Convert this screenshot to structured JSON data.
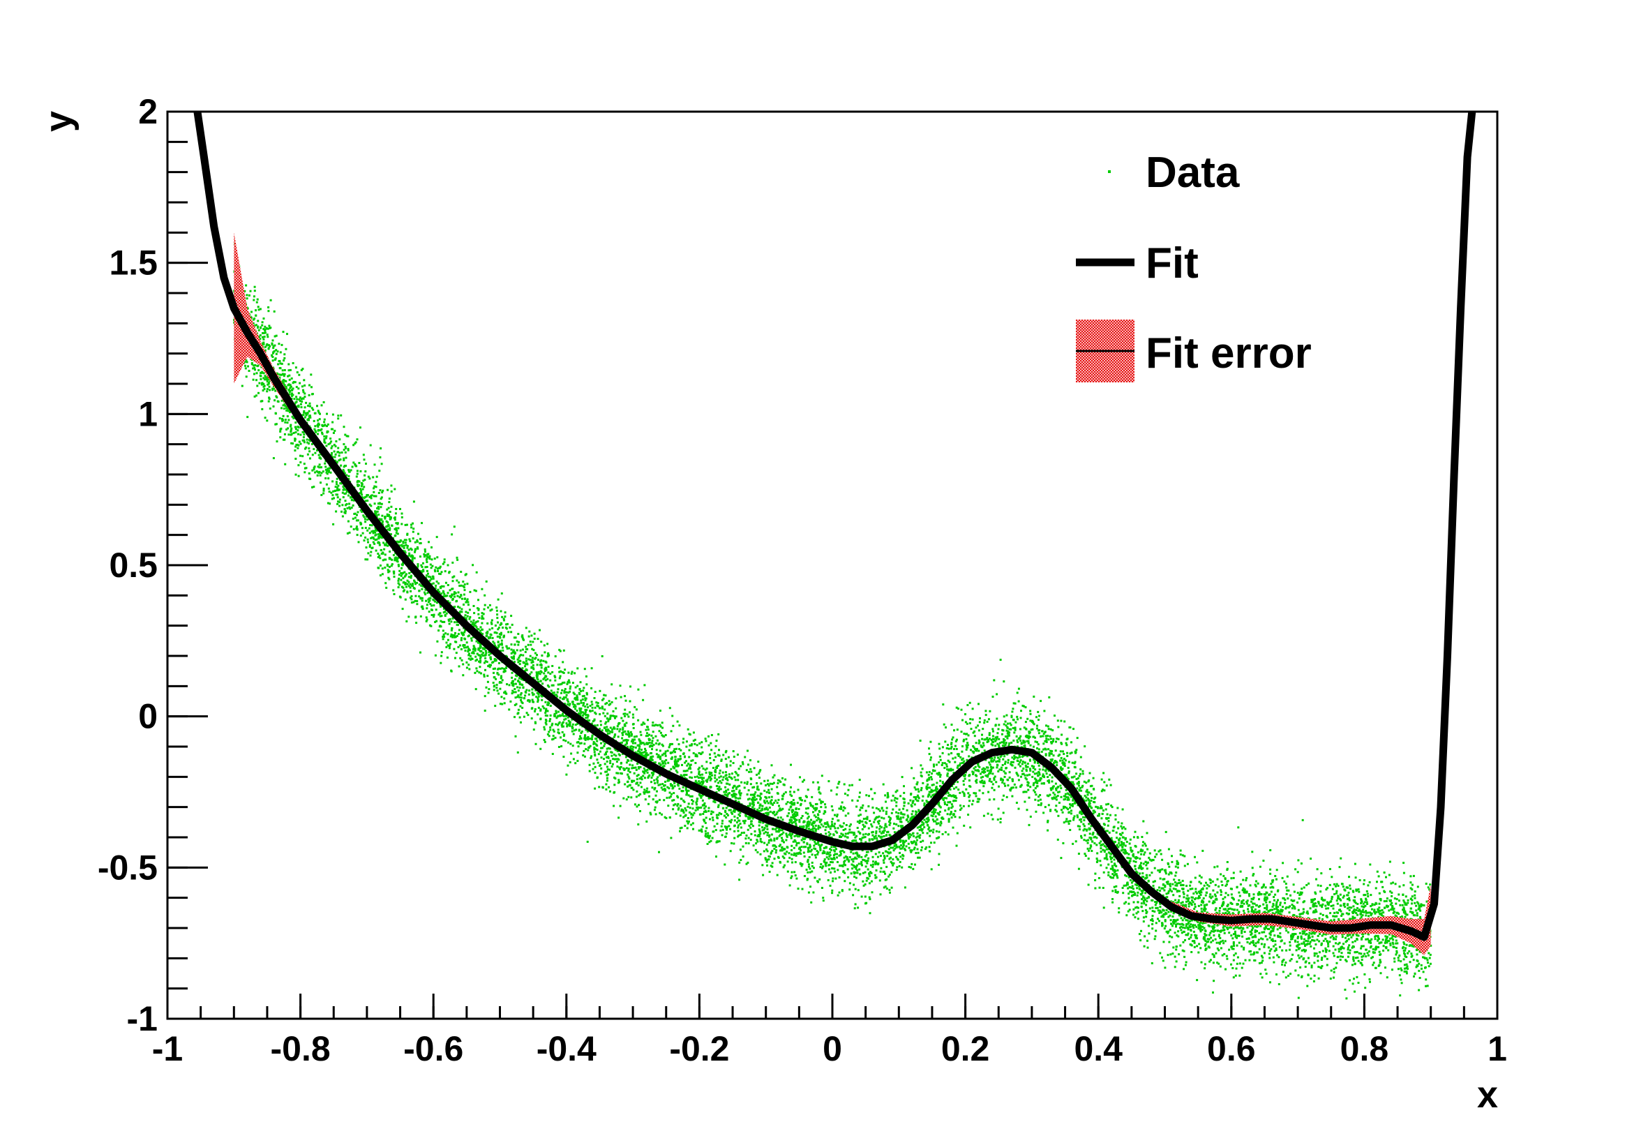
{
  "chart_data": {
    "type": "scatter",
    "title": "",
    "xlabel": "x",
    "ylabel": "y",
    "xlim": [
      -1,
      1
    ],
    "ylim": [
      -1,
      2
    ],
    "x_ticks": [
      "-1",
      "-0.8",
      "-0.6",
      "-0.4",
      "-0.2",
      "0",
      "0.2",
      "0.4",
      "0.6",
      "0.8",
      "1"
    ],
    "y_ticks": [
      "-1",
      "-0.5",
      "0",
      "0.5",
      "1",
      "1.5",
      "2"
    ],
    "grid": false,
    "legend_position": "top-right",
    "legend": [
      {
        "label": "Data",
        "marker": "dot",
        "color": "#00cc00"
      },
      {
        "label": "Fit",
        "marker": "line",
        "color": "#000000"
      },
      {
        "label": "Fit error",
        "marker": "band",
        "color": "#ee1111"
      }
    ],
    "series": [
      {
        "name": "Data",
        "kind": "scatter",
        "color": "#00cc00",
        "x_range": [
          -0.9,
          0.9
        ],
        "point_count": 10000,
        "noise_sigma": 0.08
      },
      {
        "name": "Fit",
        "kind": "line",
        "color": "#000000",
        "x": [
          -0.955,
          -0.945,
          -0.93,
          -0.915,
          -0.9,
          -0.88,
          -0.86,
          -0.84,
          -0.82,
          -0.8,
          -0.75,
          -0.7,
          -0.65,
          -0.6,
          -0.55,
          -0.5,
          -0.45,
          -0.4,
          -0.35,
          -0.3,
          -0.25,
          -0.2,
          -0.15,
          -0.1,
          -0.05,
          0.0,
          0.03,
          0.06,
          0.09,
          0.12,
          0.15,
          0.18,
          0.21,
          0.24,
          0.27,
          0.3,
          0.33,
          0.36,
          0.39,
          0.42,
          0.45,
          0.48,
          0.51,
          0.54,
          0.57,
          0.6,
          0.63,
          0.66,
          0.69,
          0.72,
          0.75,
          0.78,
          0.81,
          0.84,
          0.87,
          0.89,
          0.905,
          0.915,
          0.925,
          0.935,
          0.945,
          0.955,
          0.962
        ],
        "y": [
          2.0,
          1.85,
          1.62,
          1.45,
          1.35,
          1.27,
          1.2,
          1.12,
          1.05,
          0.98,
          0.83,
          0.68,
          0.54,
          0.41,
          0.3,
          0.2,
          0.11,
          0.02,
          -0.06,
          -0.13,
          -0.19,
          -0.24,
          -0.29,
          -0.34,
          -0.38,
          -0.415,
          -0.43,
          -0.43,
          -0.41,
          -0.36,
          -0.29,
          -0.21,
          -0.15,
          -0.12,
          -0.11,
          -0.12,
          -0.17,
          -0.24,
          -0.34,
          -0.43,
          -0.52,
          -0.58,
          -0.63,
          -0.66,
          -0.67,
          -0.675,
          -0.67,
          -0.67,
          -0.68,
          -0.69,
          -0.7,
          -0.7,
          -0.69,
          -0.69,
          -0.71,
          -0.73,
          -0.62,
          -0.3,
          0.2,
          0.8,
          1.35,
          1.85,
          2.0
        ]
      },
      {
        "name": "Fit error",
        "kind": "band",
        "color": "#ee1111",
        "x": [
          -0.9,
          -0.88,
          -0.86,
          -0.84,
          -0.82,
          -0.8,
          -0.75,
          -0.7,
          -0.65,
          -0.6,
          -0.55,
          -0.5,
          0.5,
          0.55,
          0.6,
          0.65,
          0.7,
          0.75,
          0.8,
          0.84,
          0.87,
          0.89,
          0.9
        ],
        "half_width": [
          0.25,
          0.08,
          0.04,
          0.03,
          0.025,
          0.02,
          0.015,
          0.012,
          0.01,
          0.008,
          0.008,
          0.007,
          0.01,
          0.015,
          0.02,
          0.02,
          0.02,
          0.022,
          0.025,
          0.03,
          0.04,
          0.06,
          0.1
        ]
      }
    ]
  }
}
